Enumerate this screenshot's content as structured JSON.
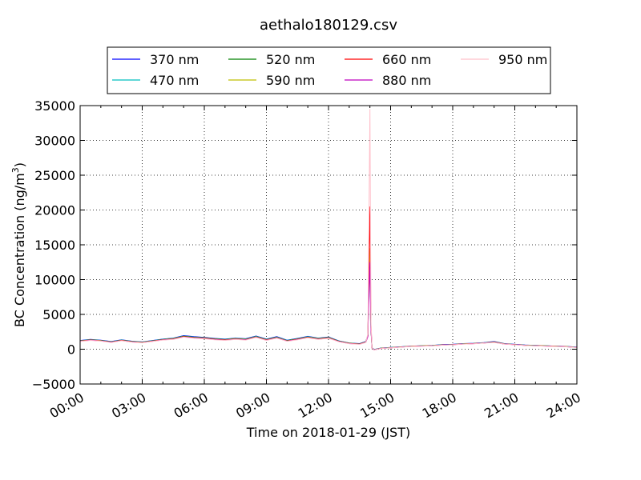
{
  "chart_data": {
    "type": "line",
    "title": "aethalo180129.csv",
    "xlabel": "Time on 2018-01-29 (JST)",
    "ylabel_main": "BC Concentration (ng/m",
    "ylabel_sup": "3",
    "ylabel_close": ")",
    "xlim": [
      0,
      24
    ],
    "ylim": [
      -5000,
      35000
    ],
    "grid": true,
    "legend_placement": "top-center",
    "xticks": [
      {
        "value": 0,
        "label": "00:00"
      },
      {
        "value": 3,
        "label": "03:00"
      },
      {
        "value": 6,
        "label": "06:00"
      },
      {
        "value": 9,
        "label": "09:00"
      },
      {
        "value": 12,
        "label": "12:00"
      },
      {
        "value": 15,
        "label": "15:00"
      },
      {
        "value": 18,
        "label": "18:00"
      },
      {
        "value": 21,
        "label": "21:00"
      },
      {
        "value": 24,
        "label": "24:00"
      }
    ],
    "yticks": [
      {
        "value": -5000,
        "label": "−5000"
      },
      {
        "value": 0,
        "label": "0"
      },
      {
        "value": 5000,
        "label": "5000"
      },
      {
        "value": 10000,
        "label": "10000"
      },
      {
        "value": 15000,
        "label": "15000"
      },
      {
        "value": 20000,
        "label": "20000"
      },
      {
        "value": 25000,
        "label": "25000"
      },
      {
        "value": 30000,
        "label": "30000"
      },
      {
        "value": 35000,
        "label": "35000"
      }
    ],
    "x": [
      0,
      0.5,
      1,
      1.5,
      2,
      2.5,
      3,
      3.5,
      4,
      4.5,
      5,
      5.5,
      6,
      6.5,
      7,
      7.5,
      8,
      8.5,
      9,
      9.5,
      10,
      10.5,
      11,
      11.5,
      12,
      12.5,
      13,
      13.5,
      13.8,
      13.9,
      13.95,
      14,
      14.05,
      14.1,
      14.2,
      14.5,
      15,
      15.5,
      16,
      16.5,
      17,
      17.5,
      18,
      18.5,
      19,
      19.5,
      20,
      20.5,
      21,
      21.5,
      22,
      22.5,
      23,
      23.5,
      24
    ],
    "series": [
      {
        "name": "370 nm",
        "color": "#0000ff",
        "values": [
          1250,
          1400,
          1300,
          1100,
          1350,
          1150,
          1050,
          1250,
          1450,
          1600,
          1950,
          1800,
          1700,
          1550,
          1450,
          1600,
          1500,
          1900,
          1450,
          1800,
          1300,
          1550,
          1850,
          1600,
          1750,
          1200,
          900,
          800,
          1100,
          2000,
          9000,
          14000,
          3000,
          200,
          -50,
          150,
          250,
          350,
          450,
          500,
          550,
          650,
          700,
          800,
          850,
          950,
          1100,
          800,
          700,
          600,
          550,
          500,
          450,
          400,
          300
        ]
      },
      {
        "name": "470 nm",
        "color": "#00bfbf",
        "values": [
          1220,
          1370,
          1270,
          1070,
          1320,
          1120,
          1030,
          1220,
          1420,
          1560,
          1900,
          1750,
          1660,
          1510,
          1410,
          1560,
          1460,
          1850,
          1410,
          1750,
          1260,
          1510,
          1800,
          1560,
          1710,
          1170,
          880,
          780,
          1070,
          1950,
          8800,
          13800,
          2900,
          180,
          -60,
          140,
          240,
          340,
          440,
          490,
          540,
          630,
          680,
          780,
          830,
          930,
          1070,
          780,
          680,
          580,
          540,
          490,
          440,
          390,
          290
        ]
      },
      {
        "name": "520 nm",
        "color": "#008000",
        "values": [
          1200,
          1350,
          1250,
          1050,
          1300,
          1100,
          1010,
          1200,
          1390,
          1530,
          1860,
          1710,
          1630,
          1480,
          1380,
          1530,
          1430,
          1810,
          1380,
          1710,
          1230,
          1480,
          1760,
          1530,
          1680,
          1150,
          860,
          760,
          1050,
          1920,
          8700,
          13900,
          2850,
          170,
          -70,
          130,
          230,
          330,
          430,
          480,
          530,
          620,
          670,
          770,
          820,
          910,
          1050,
          770,
          670,
          570,
          530,
          480,
          430,
          380,
          280
        ]
      },
      {
        "name": "590 nm",
        "color": "#bfbf00",
        "values": [
          1180,
          1330,
          1230,
          1030,
          1280,
          1080,
          990,
          1180,
          1370,
          1500,
          1830,
          1680,
          1600,
          1450,
          1350,
          1500,
          1400,
          1780,
          1350,
          1680,
          1200,
          1450,
          1730,
          1500,
          1650,
          1130,
          850,
          750,
          1030,
          1900,
          8900,
          14500,
          2950,
          160,
          -80,
          120,
          220,
          320,
          420,
          470,
          520,
          610,
          660,
          760,
          810,
          900,
          1030,
          760,
          660,
          560,
          520,
          470,
          420,
          370,
          270
        ]
      },
      {
        "name": "660 nm",
        "color": "#ff0000",
        "values": [
          1160,
          1310,
          1210,
          1010,
          1260,
          1060,
          970,
          1160,
          1350,
          1470,
          1800,
          1650,
          1570,
          1420,
          1320,
          1470,
          1370,
          1750,
          1320,
          1650,
          1180,
          1420,
          1700,
          1470,
          1620,
          1110,
          830,
          730,
          1010,
          1900,
          11000,
          20500,
          3500,
          150,
          -90,
          110,
          210,
          310,
          410,
          460,
          510,
          600,
          650,
          750,
          800,
          890,
          1010,
          750,
          650,
          550,
          510,
          460,
          410,
          360,
          260
        ]
      },
      {
        "name": "880 nm",
        "color": "#bf00bf",
        "values": [
          1140,
          1290,
          1190,
          990,
          1240,
          1040,
          950,
          1140,
          1330,
          1440,
          1770,
          1620,
          1540,
          1390,
          1290,
          1440,
          1340,
          1720,
          1290,
          1620,
          1160,
          1390,
          1670,
          1440,
          1590,
          1090,
          810,
          710,
          990,
          1800,
          7500,
          12500,
          2700,
          140,
          -100,
          100,
          200,
          300,
          400,
          450,
          500,
          590,
          640,
          740,
          790,
          880,
          990,
          740,
          640,
          540,
          500,
          450,
          400,
          350,
          250
        ]
      },
      {
        "name": "950 nm",
        "color": "#ffc0cb",
        "values": [
          1120,
          1270,
          1170,
          970,
          1220,
          1020,
          930,
          1120,
          1310,
          1410,
          1740,
          1590,
          1510,
          1360,
          1260,
          1410,
          1310,
          1690,
          1260,
          1590,
          1140,
          1360,
          1640,
          1410,
          1560,
          1070,
          790,
          690,
          970,
          2200,
          18000,
          34500,
          4000,
          130,
          -110,
          90,
          190,
          290,
          390,
          440,
          490,
          580,
          630,
          730,
          780,
          870,
          970,
          730,
          630,
          530,
          490,
          440,
          390,
          340,
          240
        ]
      }
    ]
  }
}
